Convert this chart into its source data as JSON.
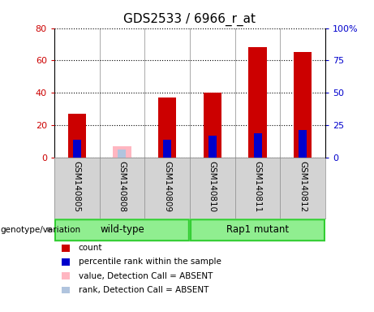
{
  "title": "GDS2533 / 6966_r_at",
  "samples": [
    "GSM140805",
    "GSM140808",
    "GSM140809",
    "GSM140810",
    "GSM140811",
    "GSM140812"
  ],
  "count_values": [
    27,
    0,
    37,
    40,
    68,
    65
  ],
  "percentile_values": [
    14,
    0,
    14,
    17,
    19,
    21
  ],
  "absent_value_values": [
    0,
    7,
    0,
    0,
    0,
    0
  ],
  "absent_rank_values": [
    0,
    6,
    0,
    0,
    0,
    0
  ],
  "count_color": "#CC0000",
  "percentile_color": "#0000CC",
  "absent_value_color": "#FFB6C1",
  "absent_rank_color": "#B0C4DE",
  "ylim_left": [
    0,
    80
  ],
  "ylim_right": [
    0,
    100
  ],
  "yticks_left": [
    0,
    20,
    40,
    60,
    80
  ],
  "ytick_labels_left": [
    "0",
    "20",
    "40",
    "60",
    "80"
  ],
  "ytick_labels_right": [
    "0",
    "25",
    "50",
    "75",
    "100%"
  ],
  "yticks_right": [
    0,
    25,
    50,
    75,
    100
  ],
  "bar_width": 0.4,
  "plot_bg_color": "#FFFFFF",
  "label_bg_color": "#D3D3D3",
  "title_fontsize": 11,
  "tick_fontsize": 8,
  "legend_entries": [
    "count",
    "percentile rank within the sample",
    "value, Detection Call = ABSENT",
    "rank, Detection Call = ABSENT"
  ],
  "legend_colors": [
    "#CC0000",
    "#0000CC",
    "#FFB6C1",
    "#B0C4DE"
  ],
  "group_wt_label": "wild-type",
  "group_rap_label": "Rap1 mutant",
  "group_color": "#90EE90",
  "group_border_color": "#32CD32",
  "genotype_label": "genotype/variation"
}
